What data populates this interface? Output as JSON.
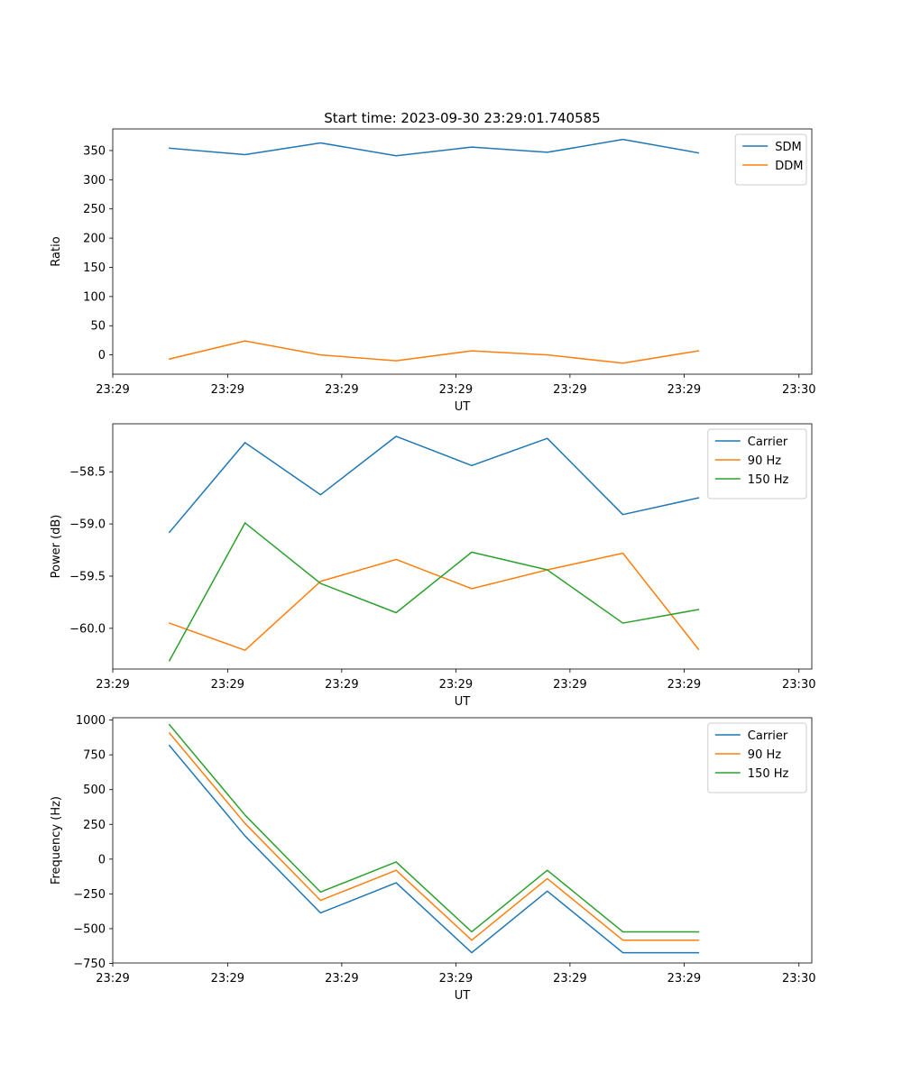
{
  "figure": {
    "title": "Start time: 2023-09-30 23:29:01.740585"
  },
  "chart_data": [
    {
      "type": "line",
      "title": "Start time: 2023-09-30 23:29:01.740585",
      "xlabel": "UT",
      "ylabel": "Ratio",
      "x": [
        0,
        1,
        2,
        3,
        4,
        5,
        6,
        7
      ],
      "xlim": [
        -0.75,
        8.5
      ],
      "xticks": [
        -0.75,
        0.77,
        2.28,
        3.79,
        5.3,
        6.81,
        8.33
      ],
      "xtick_labels": [
        "23:29",
        "23:29",
        "23:29",
        "23:29",
        "23:29",
        "23:29",
        "23:30"
      ],
      "ylim": [
        -33,
        387
      ],
      "yticks": [
        0,
        50,
        100,
        150,
        200,
        250,
        300,
        350
      ],
      "ytick_labels": [
        "0",
        "50",
        "100",
        "150",
        "200",
        "250",
        "300",
        "350"
      ],
      "legend": "top-right",
      "series": [
        {
          "name": "SDM",
          "color": "#1f77b4",
          "values": [
            354,
            343,
            363,
            341,
            356,
            347,
            369,
            346
          ]
        },
        {
          "name": "DDM",
          "color": "#ff7f0e",
          "values": [
            -7,
            24,
            0,
            -10,
            7,
            0,
            -14,
            7
          ]
        }
      ]
    },
    {
      "type": "line",
      "title": "",
      "xlabel": "UT",
      "ylabel": "Power (dB)",
      "x": [
        0,
        1,
        2,
        3,
        4,
        5,
        6,
        7
      ],
      "xlim": [
        -0.75,
        8.5
      ],
      "xticks": [
        -0.75,
        0.77,
        2.28,
        3.79,
        5.3,
        6.81,
        8.33
      ],
      "xtick_labels": [
        "23:29",
        "23:29",
        "23:29",
        "23:29",
        "23:29",
        "23:29",
        "23:30"
      ],
      "ylim": [
        -60.39,
        -58.04
      ],
      "yticks": [
        -60.0,
        -59.5,
        -59.0,
        -58.5
      ],
      "ytick_labels": [
        "−60.0",
        "−59.5",
        "−59.0",
        "−58.5"
      ],
      "legend": "top-right",
      "series": [
        {
          "name": "Carrier",
          "color": "#1f77b4",
          "values": [
            -59.08,
            -58.22,
            -58.72,
            -58.16,
            -58.44,
            -58.18,
            -58.91,
            -58.75
          ]
        },
        {
          "name": "90 Hz",
          "color": "#ff7f0e",
          "values": [
            -59.95,
            -60.21,
            -59.55,
            -59.34,
            -59.62,
            -59.44,
            -59.28,
            -60.2
          ]
        },
        {
          "name": "150 Hz",
          "color": "#2ca02c",
          "values": [
            -60.31,
            -58.99,
            -59.57,
            -59.85,
            -59.27,
            -59.44,
            -59.95,
            -59.82
          ]
        }
      ]
    },
    {
      "type": "line",
      "title": "",
      "xlabel": "UT",
      "ylabel": "Frequency (Hz)",
      "x": [
        0,
        1,
        2,
        3,
        4,
        5,
        6,
        7
      ],
      "xlim": [
        -0.75,
        8.5
      ],
      "xticks": [
        -0.75,
        0.77,
        2.28,
        3.79,
        5.3,
        6.81,
        8.33
      ],
      "xtick_labels": [
        "23:29",
        "23:29",
        "23:29",
        "23:29",
        "23:29",
        "23:29",
        "23:30"
      ],
      "ylim": [
        -747,
        1017
      ],
      "yticks": [
        -750,
        -500,
        -250,
        0,
        250,
        500,
        750,
        1000
      ],
      "ytick_labels": [
        "−750",
        "−500",
        "−250",
        "0",
        "250",
        "500",
        "750",
        "1000"
      ],
      "legend": "top-right",
      "series": [
        {
          "name": "Carrier",
          "color": "#1f77b4",
          "values": [
            817,
            167,
            -387,
            -170,
            -673,
            -230,
            -673,
            -673
          ]
        },
        {
          "name": "90 Hz",
          "color": "#ff7f0e",
          "values": [
            907,
            257,
            -297,
            -80,
            -583,
            -140,
            -583,
            -583
          ]
        },
        {
          "name": "150 Hz",
          "color": "#2ca02c",
          "values": [
            967,
            317,
            -237,
            -20,
            -523,
            -80,
            -523,
            -523
          ]
        }
      ]
    }
  ]
}
